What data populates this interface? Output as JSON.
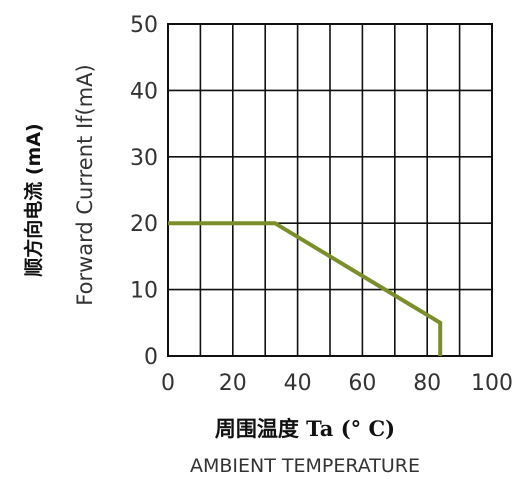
{
  "chart_data": {
    "type": "line",
    "title": "",
    "xlabel_cn": "周围温度 Ta (° C)",
    "xlabel": "AMBIENT TEMPERATURE",
    "ylabel_cn": "顺方向电流 (mA)",
    "ylabel": "Forward Current If(mA)",
    "xlim": [
      0,
      100
    ],
    "ylim": [
      0,
      50
    ],
    "x_ticks": [
      "0",
      "20",
      "40",
      "60",
      "80",
      "100"
    ],
    "y_ticks": [
      "0",
      "10",
      "20",
      "30",
      "40",
      "50"
    ],
    "grid": true,
    "series": [
      {
        "x": [
          0,
          33,
          84,
          84
        ],
        "y": [
          20,
          20,
          5,
          0
        ]
      }
    ],
    "line_color": "#7a8f2a"
  }
}
